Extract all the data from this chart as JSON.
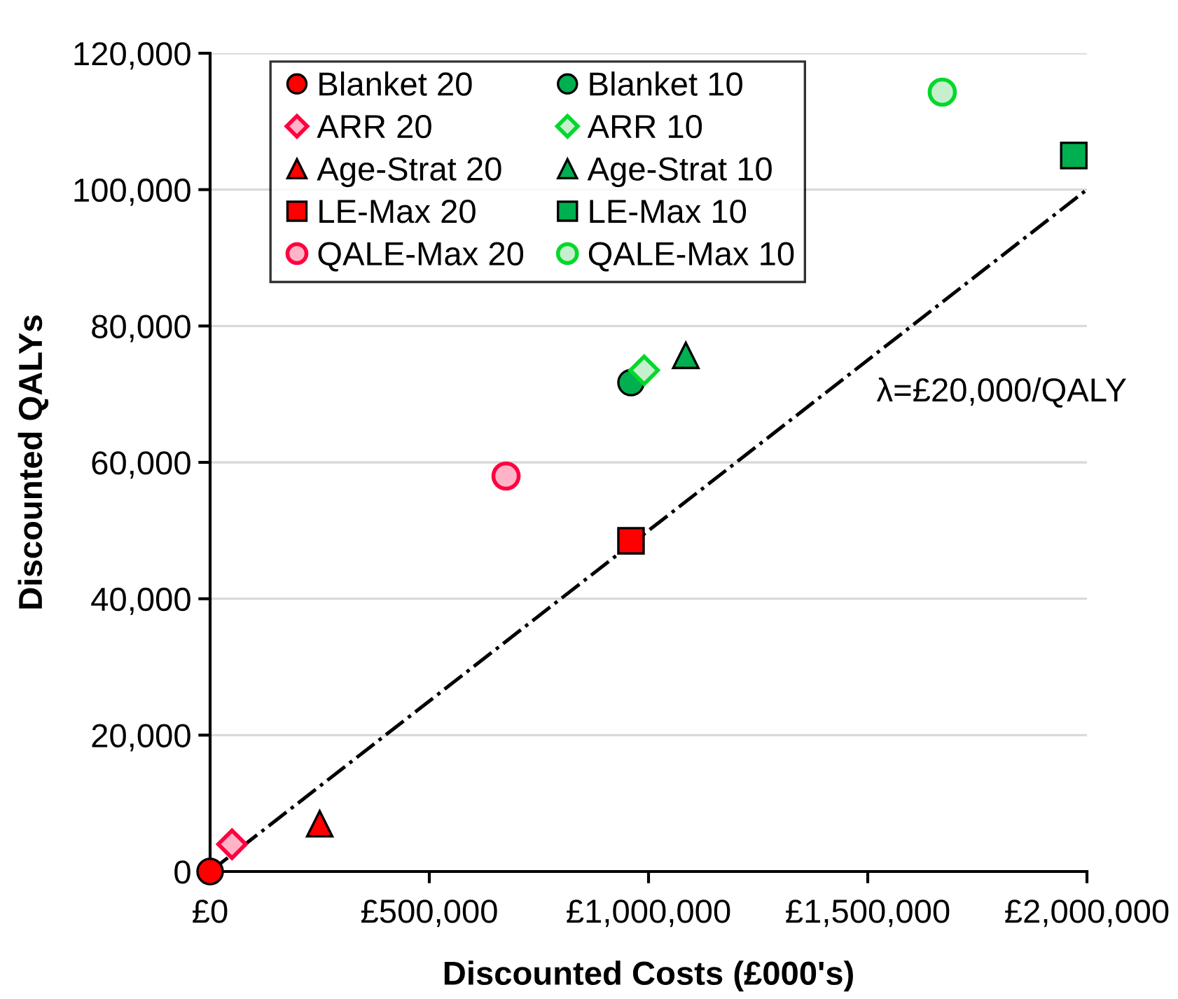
{
  "chart_data": {
    "type": "scatter",
    "xlabel": "Discounted Costs (£000's)",
    "ylabel": "Discounted QALYs",
    "xlim": [
      0,
      2000000
    ],
    "ylim": [
      0,
      120000
    ],
    "xticks": [
      {
        "value": 0,
        "label": "£0"
      },
      {
        "value": 500000,
        "label": "£500,000"
      },
      {
        "value": 1000000,
        "label": "£1,000,000"
      },
      {
        "value": 1500000,
        "label": "£1,500,000"
      },
      {
        "value": 2000000,
        "label": "£2,000,000"
      }
    ],
    "yticks": [
      0,
      {
        "value": 20000,
        "label": "20,000"
      },
      {
        "value": 40000,
        "label": "40,000"
      },
      {
        "value": 60000,
        "label": "60,000"
      },
      {
        "value": 80000,
        "label": "80,000"
      },
      {
        "value": 100000,
        "label": "100,000"
      },
      {
        "value": 120000,
        "label": "120,000"
      }
    ],
    "grid": "y",
    "legend": "top left",
    "annotations": [
      "λ=£20,000/QALY"
    ],
    "series": [
      {
        "name": "Blanket 20",
        "color": "#ff0000",
        "marker": "circle",
        "x": [
          0
        ],
        "values": [
          0
        ]
      },
      {
        "name": "ARR 20",
        "color": "#ffb3c6",
        "marker": "diamond",
        "x": [
          50000
        ],
        "values": [
          4000
        ]
      },
      {
        "name": "Age-Strat 20",
        "color": "#ff0000",
        "marker": "triangle",
        "x": [
          250000
        ],
        "values": [
          7000
        ]
      },
      {
        "name": "LE-Max 20",
        "color": "#ff0000",
        "marker": "square",
        "x": [
          960000
        ],
        "values": [
          48500
        ]
      },
      {
        "name": "QALE-Max 20",
        "color": "#ffb3c6",
        "marker": "circle",
        "x": [
          675000
        ],
        "values": [
          58000
        ]
      },
      {
        "name": "Blanket 10",
        "color": "#00b050",
        "marker": "circle",
        "x": [
          960000
        ],
        "values": [
          71700
        ]
      },
      {
        "name": "ARR 10",
        "color": "#c6efce",
        "marker": "diamond",
        "x": [
          990000
        ],
        "values": [
          73500
        ]
      },
      {
        "name": "Age-Strat 10",
        "color": "#00b050",
        "marker": "triangle",
        "x": [
          1085000
        ],
        "values": [
          75700
        ]
      },
      {
        "name": "LE-Max 10",
        "color": "#00b050",
        "marker": "square",
        "x": [
          1970000
        ],
        "values": [
          105000
        ]
      },
      {
        "name": "QALE-Max 10",
        "color": "#c6efce",
        "marker": "circle",
        "x": [
          1670000
        ],
        "values": [
          114300
        ]
      },
      {
        "type": "line",
        "color": "#000000",
        "line_style": "dashdot",
        "marker": "none",
        "x": [
          0,
          2000000
        ],
        "values": [
          0,
          100000
        ]
      }
    ]
  }
}
